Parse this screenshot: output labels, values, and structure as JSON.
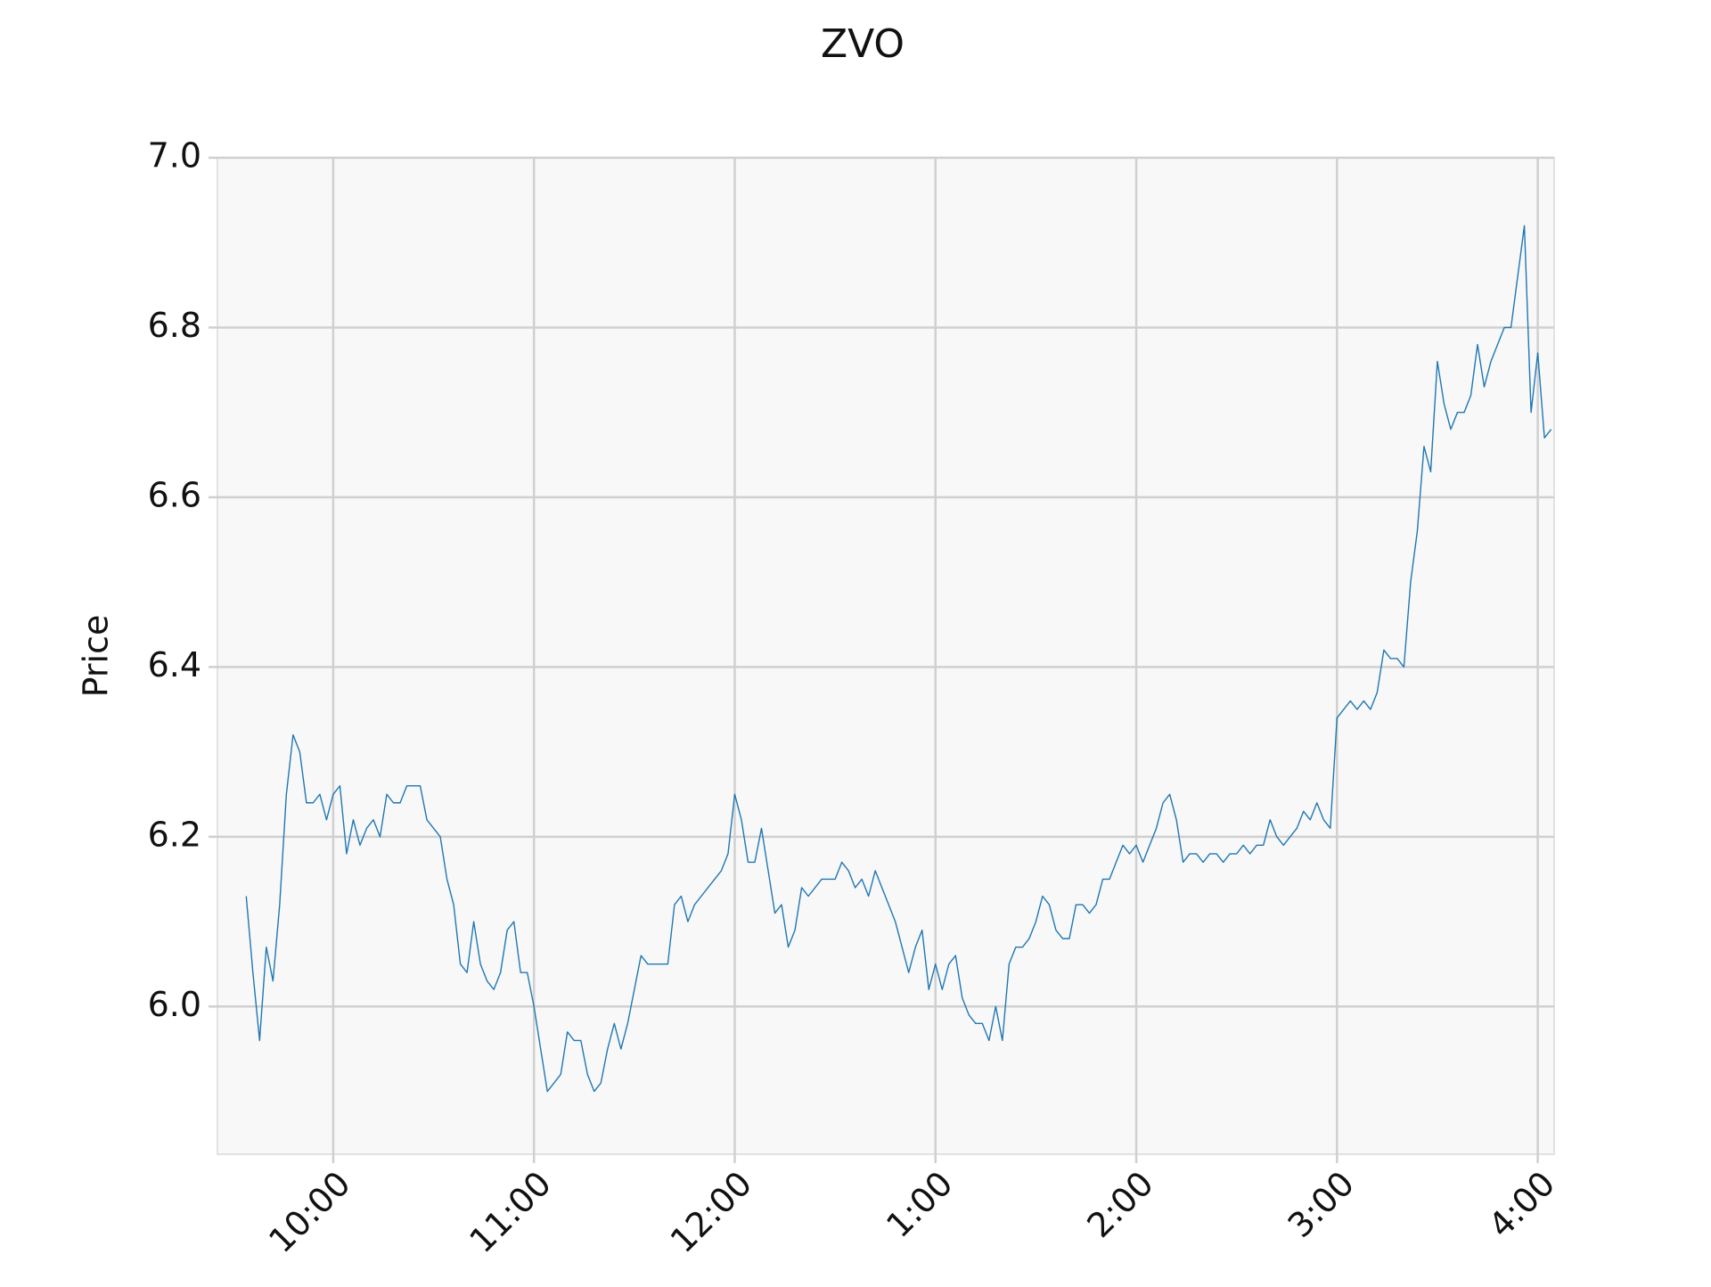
{
  "chart_data": {
    "type": "line",
    "title": "ZVO",
    "ylabel": "Price",
    "color": "#1f77b4",
    "grid": true,
    "x": [
      574,
      576,
      578,
      580,
      582,
      584,
      586,
      588,
      590,
      592,
      594,
      596,
      598,
      600,
      602,
      604,
      606,
      608,
      610,
      612,
      614,
      616,
      618,
      620,
      622,
      624,
      626,
      628,
      630,
      632,
      634,
      636,
      638,
      640,
      642,
      644,
      646,
      648,
      650,
      652,
      654,
      656,
      658,
      660,
      662,
      664,
      666,
      668,
      670,
      672,
      674,
      676,
      678,
      680,
      682,
      684,
      686,
      688,
      690,
      692,
      694,
      696,
      698,
      700,
      702,
      704,
      706,
      708,
      710,
      712,
      714,
      716,
      718,
      720,
      722,
      724,
      726,
      728,
      730,
      732,
      734,
      736,
      738,
      740,
      742,
      744,
      746,
      748,
      750,
      752,
      754,
      756,
      758,
      760,
      762,
      764,
      766,
      768,
      770,
      772,
      774,
      776,
      778,
      780,
      782,
      784,
      786,
      788,
      790,
      792,
      794,
      796,
      798,
      800,
      802,
      804,
      806,
      808,
      810,
      812,
      814,
      816,
      818,
      820,
      822,
      824,
      826,
      828,
      830,
      832,
      834,
      836,
      838,
      840,
      842,
      844,
      846,
      848,
      850,
      852,
      854,
      856,
      858,
      860,
      862,
      864,
      866,
      868,
      870,
      872,
      874,
      876,
      878,
      880,
      882,
      884,
      886,
      888,
      890,
      892,
      894,
      896,
      898,
      900,
      902,
      904,
      906,
      908,
      910,
      912,
      914,
      916,
      918,
      920,
      922,
      924,
      926,
      928,
      930,
      932,
      934,
      936,
      938,
      940,
      942,
      944,
      946,
      948,
      950,
      952,
      954,
      956,
      958,
      960,
      962,
      964
    ],
    "values": [
      6.13,
      6.04,
      5.96,
      6.07,
      6.03,
      6.12,
      6.25,
      6.32,
      6.3,
      6.24,
      6.24,
      6.25,
      6.22,
      6.25,
      6.26,
      6.18,
      6.22,
      6.19,
      6.21,
      6.22,
      6.2,
      6.25,
      6.24,
      6.24,
      6.26,
      6.26,
      6.26,
      6.22,
      6.21,
      6.2,
      6.15,
      6.12,
      6.05,
      6.04,
      6.1,
      6.05,
      6.03,
      6.02,
      6.04,
      6.09,
      6.1,
      6.04,
      6.04,
      6.0,
      5.95,
      5.9,
      5.91,
      5.92,
      5.97,
      5.96,
      5.96,
      5.92,
      5.9,
      5.91,
      5.95,
      5.98,
      5.95,
      5.98,
      6.02,
      6.06,
      6.05,
      6.05,
      6.05,
      6.05,
      6.12,
      6.13,
      6.1,
      6.12,
      6.13,
      6.14,
      6.15,
      6.16,
      6.18,
      6.25,
      6.22,
      6.17,
      6.17,
      6.21,
      6.16,
      6.11,
      6.12,
      6.07,
      6.09,
      6.14,
      6.13,
      6.14,
      6.15,
      6.15,
      6.15,
      6.17,
      6.16,
      6.14,
      6.15,
      6.13,
      6.16,
      6.14,
      6.12,
      6.1,
      6.07,
      6.04,
      6.07,
      6.09,
      6.02,
      6.05,
      6.02,
      6.05,
      6.06,
      6.01,
      5.99,
      5.98,
      5.98,
      5.96,
      6.0,
      5.96,
      6.05,
      6.07,
      6.07,
      6.08,
      6.1,
      6.13,
      6.12,
      6.09,
      6.08,
      6.08,
      6.12,
      6.12,
      6.11,
      6.12,
      6.15,
      6.15,
      6.17,
      6.19,
      6.18,
      6.19,
      6.17,
      6.19,
      6.21,
      6.24,
      6.25,
      6.22,
      6.17,
      6.18,
      6.18,
      6.17,
      6.18,
      6.18,
      6.17,
      6.18,
      6.18,
      6.19,
      6.18,
      6.19,
      6.19,
      6.22,
      6.2,
      6.19,
      6.2,
      6.21,
      6.23,
      6.22,
      6.24,
      6.22,
      6.21,
      6.34,
      6.35,
      6.36,
      6.35,
      6.36,
      6.35,
      6.37,
      6.42,
      6.41,
      6.41,
      6.4,
      6.5,
      6.56,
      6.66,
      6.63,
      6.76,
      6.71,
      6.68,
      6.7,
      6.7,
      6.72,
      6.78,
      6.73,
      6.76,
      6.78,
      6.8,
      6.8,
      6.86,
      6.92,
      6.7,
      6.77,
      6.67,
      6.68
    ],
    "xlim": [
      565.4,
      964.9
    ],
    "xticks": [
      {
        "value": 600,
        "label": "10:00"
      },
      {
        "value": 660,
        "label": "11:00"
      },
      {
        "value": 720,
        "label": "12:00"
      },
      {
        "value": 780,
        "label": "1:00"
      },
      {
        "value": 840,
        "label": "2:00"
      },
      {
        "value": 900,
        "label": "3:00"
      },
      {
        "value": 960,
        "label": "4:00"
      }
    ],
    "ylim": [
      5.826,
      7.0
    ],
    "yticks": [
      {
        "value": 6,
        "label": "6.0"
      },
      6.2,
      6.4,
      6.6,
      6.8,
      {
        "value": 7,
        "label": "7.0"
      }
    ]
  }
}
